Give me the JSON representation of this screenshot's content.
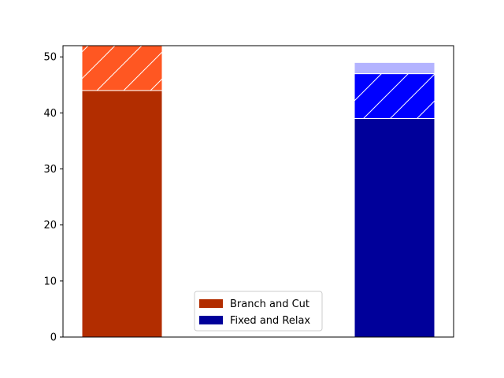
{
  "chart_data": {
    "type": "bar",
    "stacked": true,
    "categories": [
      "",
      ""
    ],
    "xlabel": "",
    "ylabel": "",
    "ylim": [
      0,
      52
    ],
    "yticks": [
      0,
      10,
      20,
      30,
      40,
      50
    ],
    "grid": false,
    "legend_position": "lower center",
    "series": [
      {
        "name": "Branch and Cut",
        "legend": true,
        "color": "#b22d00",
        "hatch": "none",
        "values": [
          44,
          null
        ]
      },
      {
        "values": [
          8,
          null
        ],
        "color": "#ff5722",
        "hatch": "diagonal",
        "legend": false
      },
      {
        "name": "Fixed and Relax",
        "legend": true,
        "color": "#00009a",
        "hatch": "none",
        "values": [
          null,
          39
        ]
      },
      {
        "values": [
          null,
          8
        ],
        "color": "#0000ff",
        "hatch": "diagonal",
        "legend": false
      },
      {
        "values": [
          null,
          2
        ],
        "color": "#b3b3ff",
        "hatch": "none",
        "legend": false
      }
    ]
  }
}
